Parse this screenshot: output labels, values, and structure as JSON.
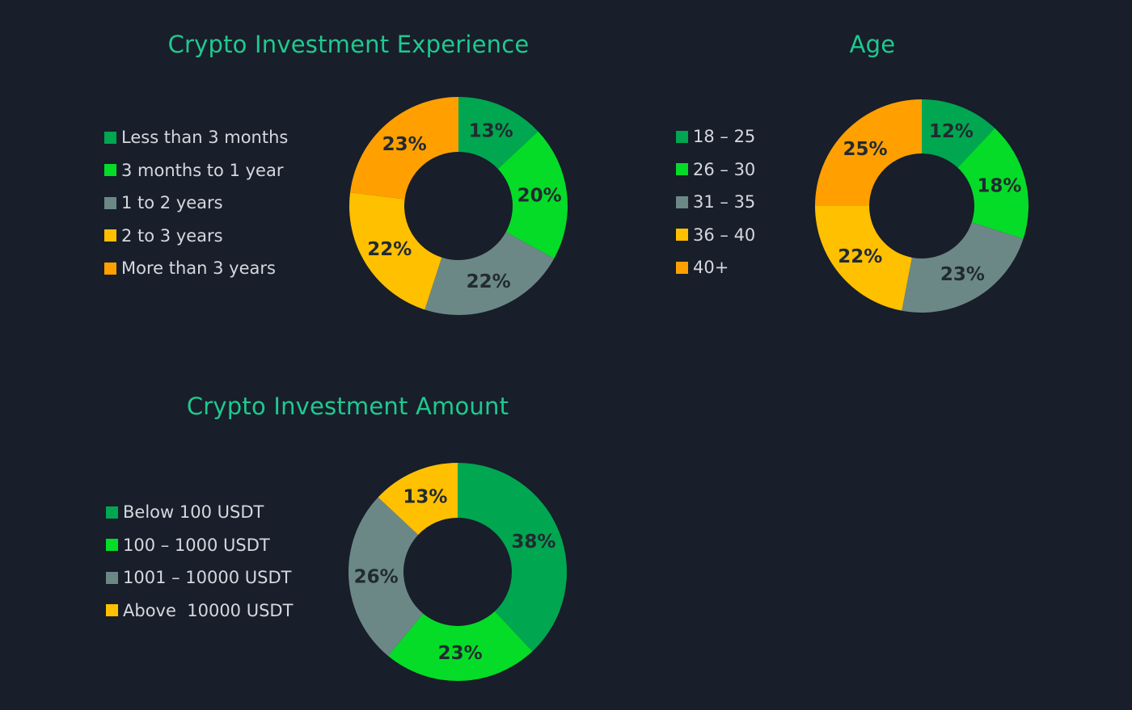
{
  "chart_data": [
    {
      "id": "experience",
      "type": "pie",
      "title": "Crypto Investment Experience",
      "categories": [
        "Less than 3 months",
        "3 months to 1 year",
        "1 to 2 years",
        "2 to 3 years",
        "More than 3 years"
      ],
      "values": [
        13,
        20,
        22,
        22,
        23
      ],
      "labels": [
        "13%",
        "20%",
        "22%",
        "22%",
        "23%"
      ],
      "colors": [
        "#00a650",
        "#05dc28",
        "#6b8886",
        "#ffc000",
        "#ffa000"
      ],
      "legend_position": "left"
    },
    {
      "id": "age",
      "type": "pie",
      "title": "Age",
      "categories": [
        "18 – 25",
        "26 – 30",
        "31 – 35",
        "36 – 40",
        "40+"
      ],
      "values": [
        12,
        18,
        23,
        22,
        25
      ],
      "labels": [
        "12%",
        "18%",
        "23%",
        "22%",
        "25%"
      ],
      "colors": [
        "#00a650",
        "#05dc28",
        "#6b8886",
        "#ffc000",
        "#ffa000"
      ],
      "legend_position": "left"
    },
    {
      "id": "amount",
      "type": "pie",
      "title": "Crypto Investment Amount",
      "categories": [
        "Below 100 USDT",
        "100 – 1000 USDT",
        "1001 – 10000 USDT",
        "Above  10000 USDT"
      ],
      "values": [
        38,
        23,
        26,
        13
      ],
      "labels": [
        "38%",
        "23%",
        "26%",
        "13%"
      ],
      "colors": [
        "#00a650",
        "#05dc28",
        "#6b8886",
        "#ffc000"
      ],
      "legend_position": "left"
    }
  ]
}
